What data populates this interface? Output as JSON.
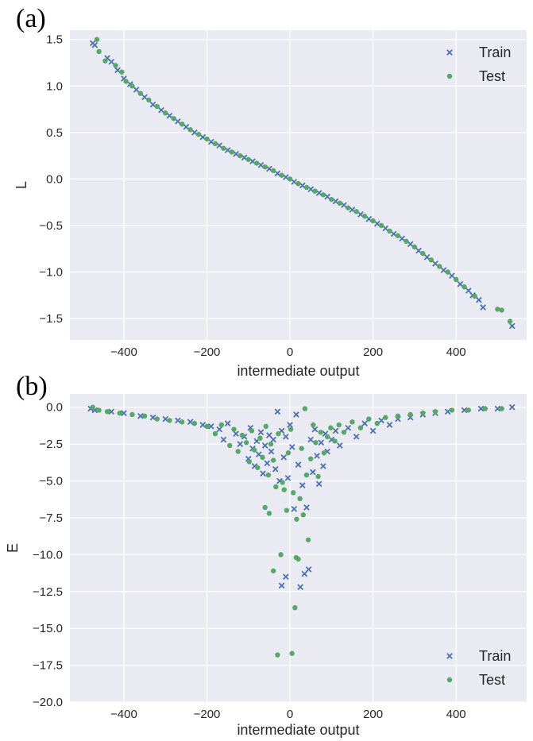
{
  "chart_data": [
    {
      "type": "scatter",
      "panel_label": "(a)",
      "xlabel": "intermediate output",
      "ylabel": "L",
      "xlim": [
        -530,
        570
      ],
      "ylim": [
        -1.73,
        1.6
      ],
      "xticks": [
        -400,
        -200,
        0,
        200,
        400
      ],
      "xtick_labels": [
        "−400",
        "−200",
        "0",
        "200",
        "400"
      ],
      "yticks": [
        1.5,
        1.0,
        0.5,
        0.0,
        -0.5,
        -1.0,
        -1.5
      ],
      "ytick_labels": [
        "1.5",
        "1.0",
        "0.5",
        "0.0",
        "−0.5",
        "−1.0",
        "−1.5"
      ],
      "grid": true,
      "background": "#eaeaf2",
      "legend_position": "top-right",
      "series": [
        {
          "name": "Train",
          "marker": "x",
          "color": "#4c72b0",
          "points": [
            [
              -475,
              1.46
            ],
            [
              -470,
              1.44
            ],
            [
              -440,
              1.3
            ],
            [
              -430,
              1.26
            ],
            [
              -415,
              1.17
            ],
            [
              -400,
              1.08
            ],
            [
              -385,
              1.02
            ],
            [
              -370,
              0.96
            ],
            [
              -350,
              0.88
            ],
            [
              -330,
              0.8
            ],
            [
              -310,
              0.74
            ],
            [
              -290,
              0.68
            ],
            [
              -270,
              0.62
            ],
            [
              -250,
              0.56
            ],
            [
              -230,
              0.5
            ],
            [
              -210,
              0.45
            ],
            [
              -190,
              0.4
            ],
            [
              -170,
              0.36
            ],
            [
              -150,
              0.31
            ],
            [
              -130,
              0.27
            ],
            [
              -110,
              0.23
            ],
            [
              -90,
              0.19
            ],
            [
              -70,
              0.15
            ],
            [
              -50,
              0.11
            ],
            [
              -30,
              0.06
            ],
            [
              -10,
              0.02
            ],
            [
              10,
              -0.03
            ],
            [
              30,
              -0.07
            ],
            [
              50,
              -0.11
            ],
            [
              70,
              -0.15
            ],
            [
              90,
              -0.19
            ],
            [
              110,
              -0.24
            ],
            [
              130,
              -0.28
            ],
            [
              150,
              -0.33
            ],
            [
              170,
              -0.38
            ],
            [
              190,
              -0.43
            ],
            [
              210,
              -0.48
            ],
            [
              230,
              -0.53
            ],
            [
              250,
              -0.59
            ],
            [
              270,
              -0.64
            ],
            [
              290,
              -0.7
            ],
            [
              310,
              -0.77
            ],
            [
              330,
              -0.84
            ],
            [
              350,
              -0.91
            ],
            [
              370,
              -0.98
            ],
            [
              390,
              -1.04
            ],
            [
              410,
              -1.13
            ],
            [
              430,
              -1.2
            ],
            [
              440,
              -1.25
            ],
            [
              455,
              -1.3
            ],
            [
              465,
              -1.38
            ],
            [
              535,
              -1.58
            ]
          ]
        },
        {
          "name": "Test",
          "marker": "o",
          "color": "#55a868",
          "points": [
            [
              -465,
              1.5
            ],
            [
              -460,
              1.37
            ],
            [
              -445,
              1.27
            ],
            [
              -420,
              1.22
            ],
            [
              -405,
              1.15
            ],
            [
              -395,
              1.05
            ],
            [
              -380,
              1.0
            ],
            [
              -360,
              0.92
            ],
            [
              -340,
              0.85
            ],
            [
              -320,
              0.78
            ],
            [
              -300,
              0.71
            ],
            [
              -280,
              0.65
            ],
            [
              -260,
              0.59
            ],
            [
              -240,
              0.53
            ],
            [
              -220,
              0.48
            ],
            [
              -200,
              0.43
            ],
            [
              -180,
              0.38
            ],
            [
              -160,
              0.33
            ],
            [
              -140,
              0.29
            ],
            [
              -120,
              0.25
            ],
            [
              -100,
              0.21
            ],
            [
              -80,
              0.17
            ],
            [
              -60,
              0.13
            ],
            [
              -40,
              0.09
            ],
            [
              -20,
              0.04
            ],
            [
              0,
              0.0
            ],
            [
              20,
              -0.05
            ],
            [
              40,
              -0.09
            ],
            [
              60,
              -0.13
            ],
            [
              80,
              -0.17
            ],
            [
              100,
              -0.22
            ],
            [
              120,
              -0.26
            ],
            [
              140,
              -0.31
            ],
            [
              160,
              -0.35
            ],
            [
              180,
              -0.4
            ],
            [
              200,
              -0.45
            ],
            [
              220,
              -0.5
            ],
            [
              240,
              -0.56
            ],
            [
              260,
              -0.61
            ],
            [
              280,
              -0.67
            ],
            [
              300,
              -0.73
            ],
            [
              320,
              -0.8
            ],
            [
              340,
              -0.87
            ],
            [
              360,
              -0.94
            ],
            [
              380,
              -1.0
            ],
            [
              400,
              -1.08
            ],
            [
              420,
              -1.16
            ],
            [
              445,
              -1.26
            ],
            [
              500,
              -1.4
            ],
            [
              510,
              -1.41
            ],
            [
              530,
              -1.53
            ]
          ]
        }
      ]
    },
    {
      "type": "scatter",
      "panel_label": "(b)",
      "xlabel": "intermediate output",
      "ylabel": "E",
      "xlim": [
        -530,
        570
      ],
      "ylim": [
        -20.0,
        0.9
      ],
      "xticks": [
        -400,
        -200,
        0,
        200,
        400
      ],
      "xtick_labels": [
        "−400",
        "−200",
        "0",
        "200",
        "400"
      ],
      "yticks": [
        0.0,
        -2.5,
        -5.0,
        -7.5,
        -10.0,
        -12.5,
        -15.0,
        -17.5,
        -20.0
      ],
      "ytick_labels": [
        "0.0",
        "−2.5",
        "−5.0",
        "−7.5",
        "−10.0",
        "−12.5",
        "−15.0",
        "−17.5",
        "−20.0"
      ],
      "grid": true,
      "background": "#eaeaf2",
      "legend_position": "bottom-right",
      "series": [
        {
          "name": "Train",
          "marker": "x",
          "color": "#4c72b0",
          "points": [
            [
              -480,
              -0.1
            ],
            [
              -470,
              -0.2
            ],
            [
              -430,
              -0.3
            ],
            [
              -400,
              -0.4
            ],
            [
              -360,
              -0.6
            ],
            [
              -330,
              -0.7
            ],
            [
              -300,
              -0.8
            ],
            [
              -270,
              -0.9
            ],
            [
              -240,
              -1.0
            ],
            [
              -210,
              -1.2
            ],
            [
              -190,
              -1.3
            ],
            [
              -170,
              -1.5
            ],
            [
              -160,
              -2.2
            ],
            [
              -150,
              -1.1
            ],
            [
              -130,
              -1.8
            ],
            [
              -120,
              -2.5
            ],
            [
              -110,
              -2.0
            ],
            [
              -100,
              -3.5
            ],
            [
              -95,
              -1.4
            ],
            [
              -90,
              -2.8
            ],
            [
              -85,
              -4.0
            ],
            [
              -80,
              -2.3
            ],
            [
              -75,
              -3.2
            ],
            [
              -70,
              -1.7
            ],
            [
              -65,
              -4.5
            ],
            [
              -60,
              -2.6
            ],
            [
              -55,
              -3.8
            ],
            [
              -50,
              -1.9
            ],
            [
              -45,
              -3.0
            ],
            [
              -40,
              -2.2
            ],
            [
              -35,
              -4.2
            ],
            [
              -30,
              -0.3
            ],
            [
              -25,
              -5.0
            ],
            [
              -20,
              -1.6
            ],
            [
              -15,
              -3.4
            ],
            [
              -10,
              -2.0
            ],
            [
              -5,
              -4.8
            ],
            [
              0,
              -1.2
            ],
            [
              5,
              -2.7
            ],
            [
              10,
              -6.9
            ],
            [
              15,
              -0.5
            ],
            [
              20,
              -3.9
            ],
            [
              25,
              -12.2
            ],
            [
              30,
              -5.3
            ],
            [
              35,
              -11.3
            ],
            [
              40,
              -6.8
            ],
            [
              45,
              -11.0
            ],
            [
              50,
              -2.2
            ],
            [
              55,
              -4.4
            ],
            [
              60,
              -1.5
            ],
            [
              65,
              -3.3
            ],
            [
              70,
              -5.2
            ],
            [
              75,
              -2.4
            ],
            [
              80,
              -4.0
            ],
            [
              85,
              -1.8
            ],
            [
              90,
              -3.0
            ],
            [
              100,
              -2.2
            ],
            [
              110,
              -1.6
            ],
            [
              120,
              -2.6
            ],
            [
              140,
              -1.4
            ],
            [
              160,
              -2.0
            ],
            [
              180,
              -1.1
            ],
            [
              200,
              -1.6
            ],
            [
              220,
              -0.9
            ],
            [
              240,
              -1.2
            ],
            [
              260,
              -0.8
            ],
            [
              290,
              -0.7
            ],
            [
              320,
              -0.5
            ],
            [
              350,
              -0.4
            ],
            [
              380,
              -0.3
            ],
            [
              420,
              -0.2
            ],
            [
              460,
              -0.1
            ],
            [
              500,
              -0.1
            ],
            [
              535,
              0.0
            ],
            [
              -20,
              -12.1
            ],
            [
              -10,
              -11.5
            ]
          ]
        },
        {
          "name": "Test",
          "marker": "o",
          "color": "#55a868",
          "points": [
            [
              -475,
              -0.0
            ],
            [
              -460,
              -0.2
            ],
            [
              -440,
              -0.3
            ],
            [
              -410,
              -0.4
            ],
            [
              -380,
              -0.5
            ],
            [
              -350,
              -0.6
            ],
            [
              -320,
              -0.8
            ],
            [
              -290,
              -0.9
            ],
            [
              -260,
              -1.0
            ],
            [
              -230,
              -1.1
            ],
            [
              -200,
              -1.3
            ],
            [
              -180,
              -1.8
            ],
            [
              -165,
              -1.2
            ],
            [
              -145,
              -2.6
            ],
            [
              -135,
              -1.5
            ],
            [
              -125,
              -3.0
            ],
            [
              -115,
              -1.9
            ],
            [
              -105,
              -2.4
            ],
            [
              -98,
              -3.7
            ],
            [
              -92,
              -1.6
            ],
            [
              -86,
              -2.9
            ],
            [
              -78,
              -4.1
            ],
            [
              -72,
              -2.1
            ],
            [
              -66,
              -3.4
            ],
            [
              -58,
              -1.3
            ],
            [
              -52,
              -4.6
            ],
            [
              -46,
              -2.5
            ],
            [
              -40,
              -3.6
            ],
            [
              -34,
              -5.4
            ],
            [
              -28,
              -1.8
            ],
            [
              -22,
              -10.0
            ],
            [
              -18,
              -5.1
            ],
            [
              -14,
              -5.6
            ],
            [
              -8,
              -7.0
            ],
            [
              -4,
              -3.1
            ],
            [
              2,
              -1.5
            ],
            [
              8,
              -5.8
            ],
            [
              12,
              -13.6
            ],
            [
              16,
              -7.6
            ],
            [
              20,
              -10.3
            ],
            [
              24,
              -6.2
            ],
            [
              28,
              -2.8
            ],
            [
              32,
              -7.3
            ],
            [
              36,
              -0.1
            ],
            [
              40,
              -4.6
            ],
            [
              44,
              -9.0
            ],
            [
              50,
              -3.5
            ],
            [
              56,
              -1.2
            ],
            [
              62,
              -2.4
            ],
            [
              68,
              -4.7
            ],
            [
              74,
              -1.7
            ],
            [
              82,
              -3.1
            ],
            [
              90,
              -2.0
            ],
            [
              98,
              -1.4
            ],
            [
              108,
              -2.3
            ],
            [
              118,
              -1.2
            ],
            [
              130,
              -1.7
            ],
            [
              150,
              -1.0
            ],
            [
              170,
              -1.4
            ],
            [
              190,
              -0.8
            ],
            [
              210,
              -1.1
            ],
            [
              230,
              -0.7
            ],
            [
              260,
              -0.6
            ],
            [
              290,
              -0.5
            ],
            [
              320,
              -0.4
            ],
            [
              350,
              -0.3
            ],
            [
              390,
              -0.2
            ],
            [
              430,
              -0.2
            ],
            [
              470,
              -0.1
            ],
            [
              510,
              -0.1
            ],
            [
              -30,
              -16.8
            ],
            [
              5,
              -16.7
            ],
            [
              -40,
              -11.1
            ],
            [
              -50,
              -7.2
            ],
            [
              -60,
              -6.8
            ],
            [
              15,
              -10.2
            ]
          ]
        }
      ]
    }
  ]
}
